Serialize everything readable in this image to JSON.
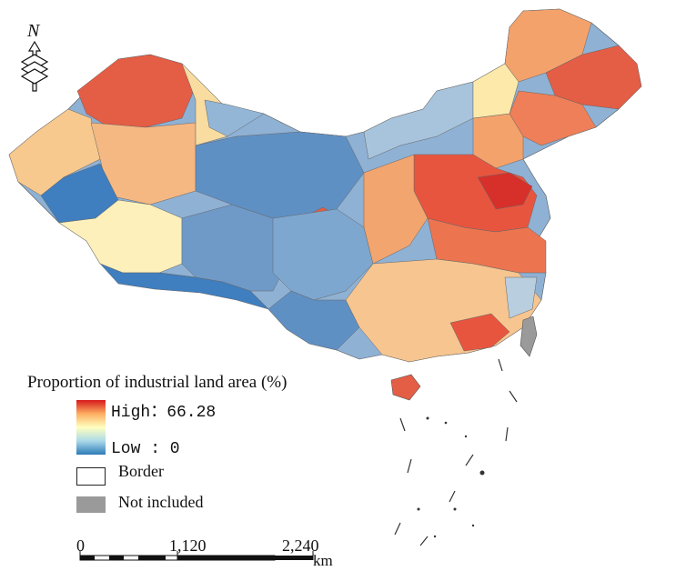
{
  "map": {
    "legend": {
      "title": "Proportion of industrial land area (%)",
      "high_label": "High：66.28",
      "low_label": "Low : 0",
      "border_label": "Border",
      "not_included_label": "Not included",
      "ramp_colors": [
        "#d7191c",
        "#fdae61",
        "#ffffbf",
        "#abd9e9",
        "#2c7bb6"
      ],
      "not_included_color": "#9a9a9a"
    },
    "north_arrow": {
      "label": "N",
      "icon": "north-arrow-icon"
    },
    "scale_bar": {
      "ticks": [
        "0",
        "1,120",
        "2,240"
      ],
      "unit": "km"
    },
    "value_colors": {
      "high": "#e0483a",
      "mid_high": "#f4a26c",
      "mid": "#fde9a9",
      "mid_low": "#b9cfe0",
      "low": "#3f7ebf"
    }
  }
}
